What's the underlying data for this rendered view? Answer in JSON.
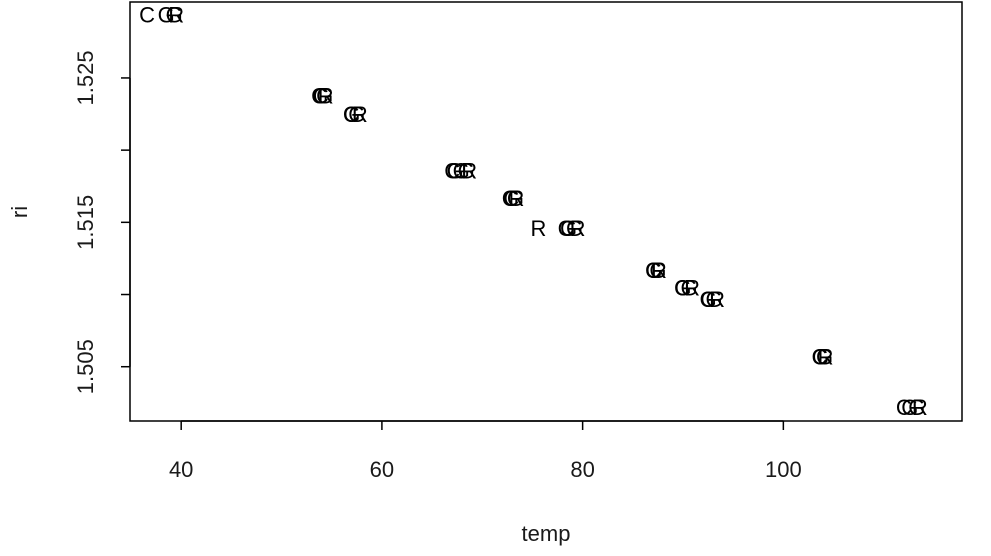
{
  "chart_data": {
    "type": "scatter",
    "title": "",
    "xlabel": "temp",
    "ylabel": "ri",
    "xlim": [
      34.9,
      117.8
    ],
    "ylim": [
      1.50124,
      1.53026
    ],
    "x_ticks": [
      40,
      60,
      80,
      100
    ],
    "y_ticks": [
      1.505,
      1.51,
      1.515,
      1.52,
      1.525
    ],
    "y_tick_labels": [
      "1.505",
      "",
      "1.515",
      "",
      "1.525"
    ],
    "grid": false,
    "legend": "none",
    "marker": "text",
    "series": [
      {
        "name": "G",
        "label": "G",
        "color": "#000000",
        "points": [
          {
            "x": 38.5,
            "y": 1.5294
          },
          {
            "x": 39.3,
            "y": 1.5294
          },
          {
            "x": 53.8,
            "y": 1.5238
          },
          {
            "x": 54.3,
            "y": 1.5238
          },
          {
            "x": 57.0,
            "y": 1.5225
          },
          {
            "x": 57.5,
            "y": 1.5225
          },
          {
            "x": 67.3,
            "y": 1.5186
          },
          {
            "x": 67.9,
            "y": 1.5186
          },
          {
            "x": 68.4,
            "y": 1.5186
          },
          {
            "x": 72.8,
            "y": 1.5167
          },
          {
            "x": 73.3,
            "y": 1.5167
          },
          {
            "x": 78.6,
            "y": 1.5146
          },
          {
            "x": 79.2,
            "y": 1.5146
          },
          {
            "x": 87.1,
            "y": 1.5117
          },
          {
            "x": 87.5,
            "y": 1.5117
          },
          {
            "x": 90.0,
            "y": 1.5105
          },
          {
            "x": 90.6,
            "y": 1.5105
          },
          {
            "x": 92.5,
            "y": 1.5097
          },
          {
            "x": 93.1,
            "y": 1.5097
          },
          {
            "x": 103.7,
            "y": 1.5057
          },
          {
            "x": 104.1,
            "y": 1.5057
          },
          {
            "x": 112.6,
            "y": 1.5022
          },
          {
            "x": 113.3,
            "y": 1.5022
          }
        ]
      },
      {
        "name": "C",
        "label": "C",
        "color": "#000000",
        "points": [
          {
            "x": 36.6,
            "y": 1.5294
          },
          {
            "x": 53.9,
            "y": 1.5238
          },
          {
            "x": 56.9,
            "y": 1.5225
          },
          {
            "x": 67.0,
            "y": 1.5186
          },
          {
            "x": 72.9,
            "y": 1.5167
          },
          {
            "x": 78.3,
            "y": 1.5146
          },
          {
            "x": 87.0,
            "y": 1.5117
          },
          {
            "x": 89.9,
            "y": 1.5105
          },
          {
            "x": 92.5,
            "y": 1.5097
          },
          {
            "x": 103.6,
            "y": 1.5057
          },
          {
            "x": 112.0,
            "y": 1.5022
          }
        ]
      },
      {
        "name": "R",
        "label": "R",
        "color": "#000000",
        "points": [
          {
            "x": 39.5,
            "y": 1.5294
          },
          {
            "x": 54.4,
            "y": 1.5238
          },
          {
            "x": 57.8,
            "y": 1.5225
          },
          {
            "x": 68.7,
            "y": 1.5186
          },
          {
            "x": 73.4,
            "y": 1.5167
          },
          {
            "x": 75.6,
            "y": 1.5146
          },
          {
            "x": 79.5,
            "y": 1.5146
          },
          {
            "x": 87.6,
            "y": 1.5117
          },
          {
            "x": 90.9,
            "y": 1.5105
          },
          {
            "x": 93.4,
            "y": 1.5097
          },
          {
            "x": 104.2,
            "y": 1.5057
          },
          {
            "x": 113.6,
            "y": 1.5022
          }
        ]
      }
    ]
  }
}
